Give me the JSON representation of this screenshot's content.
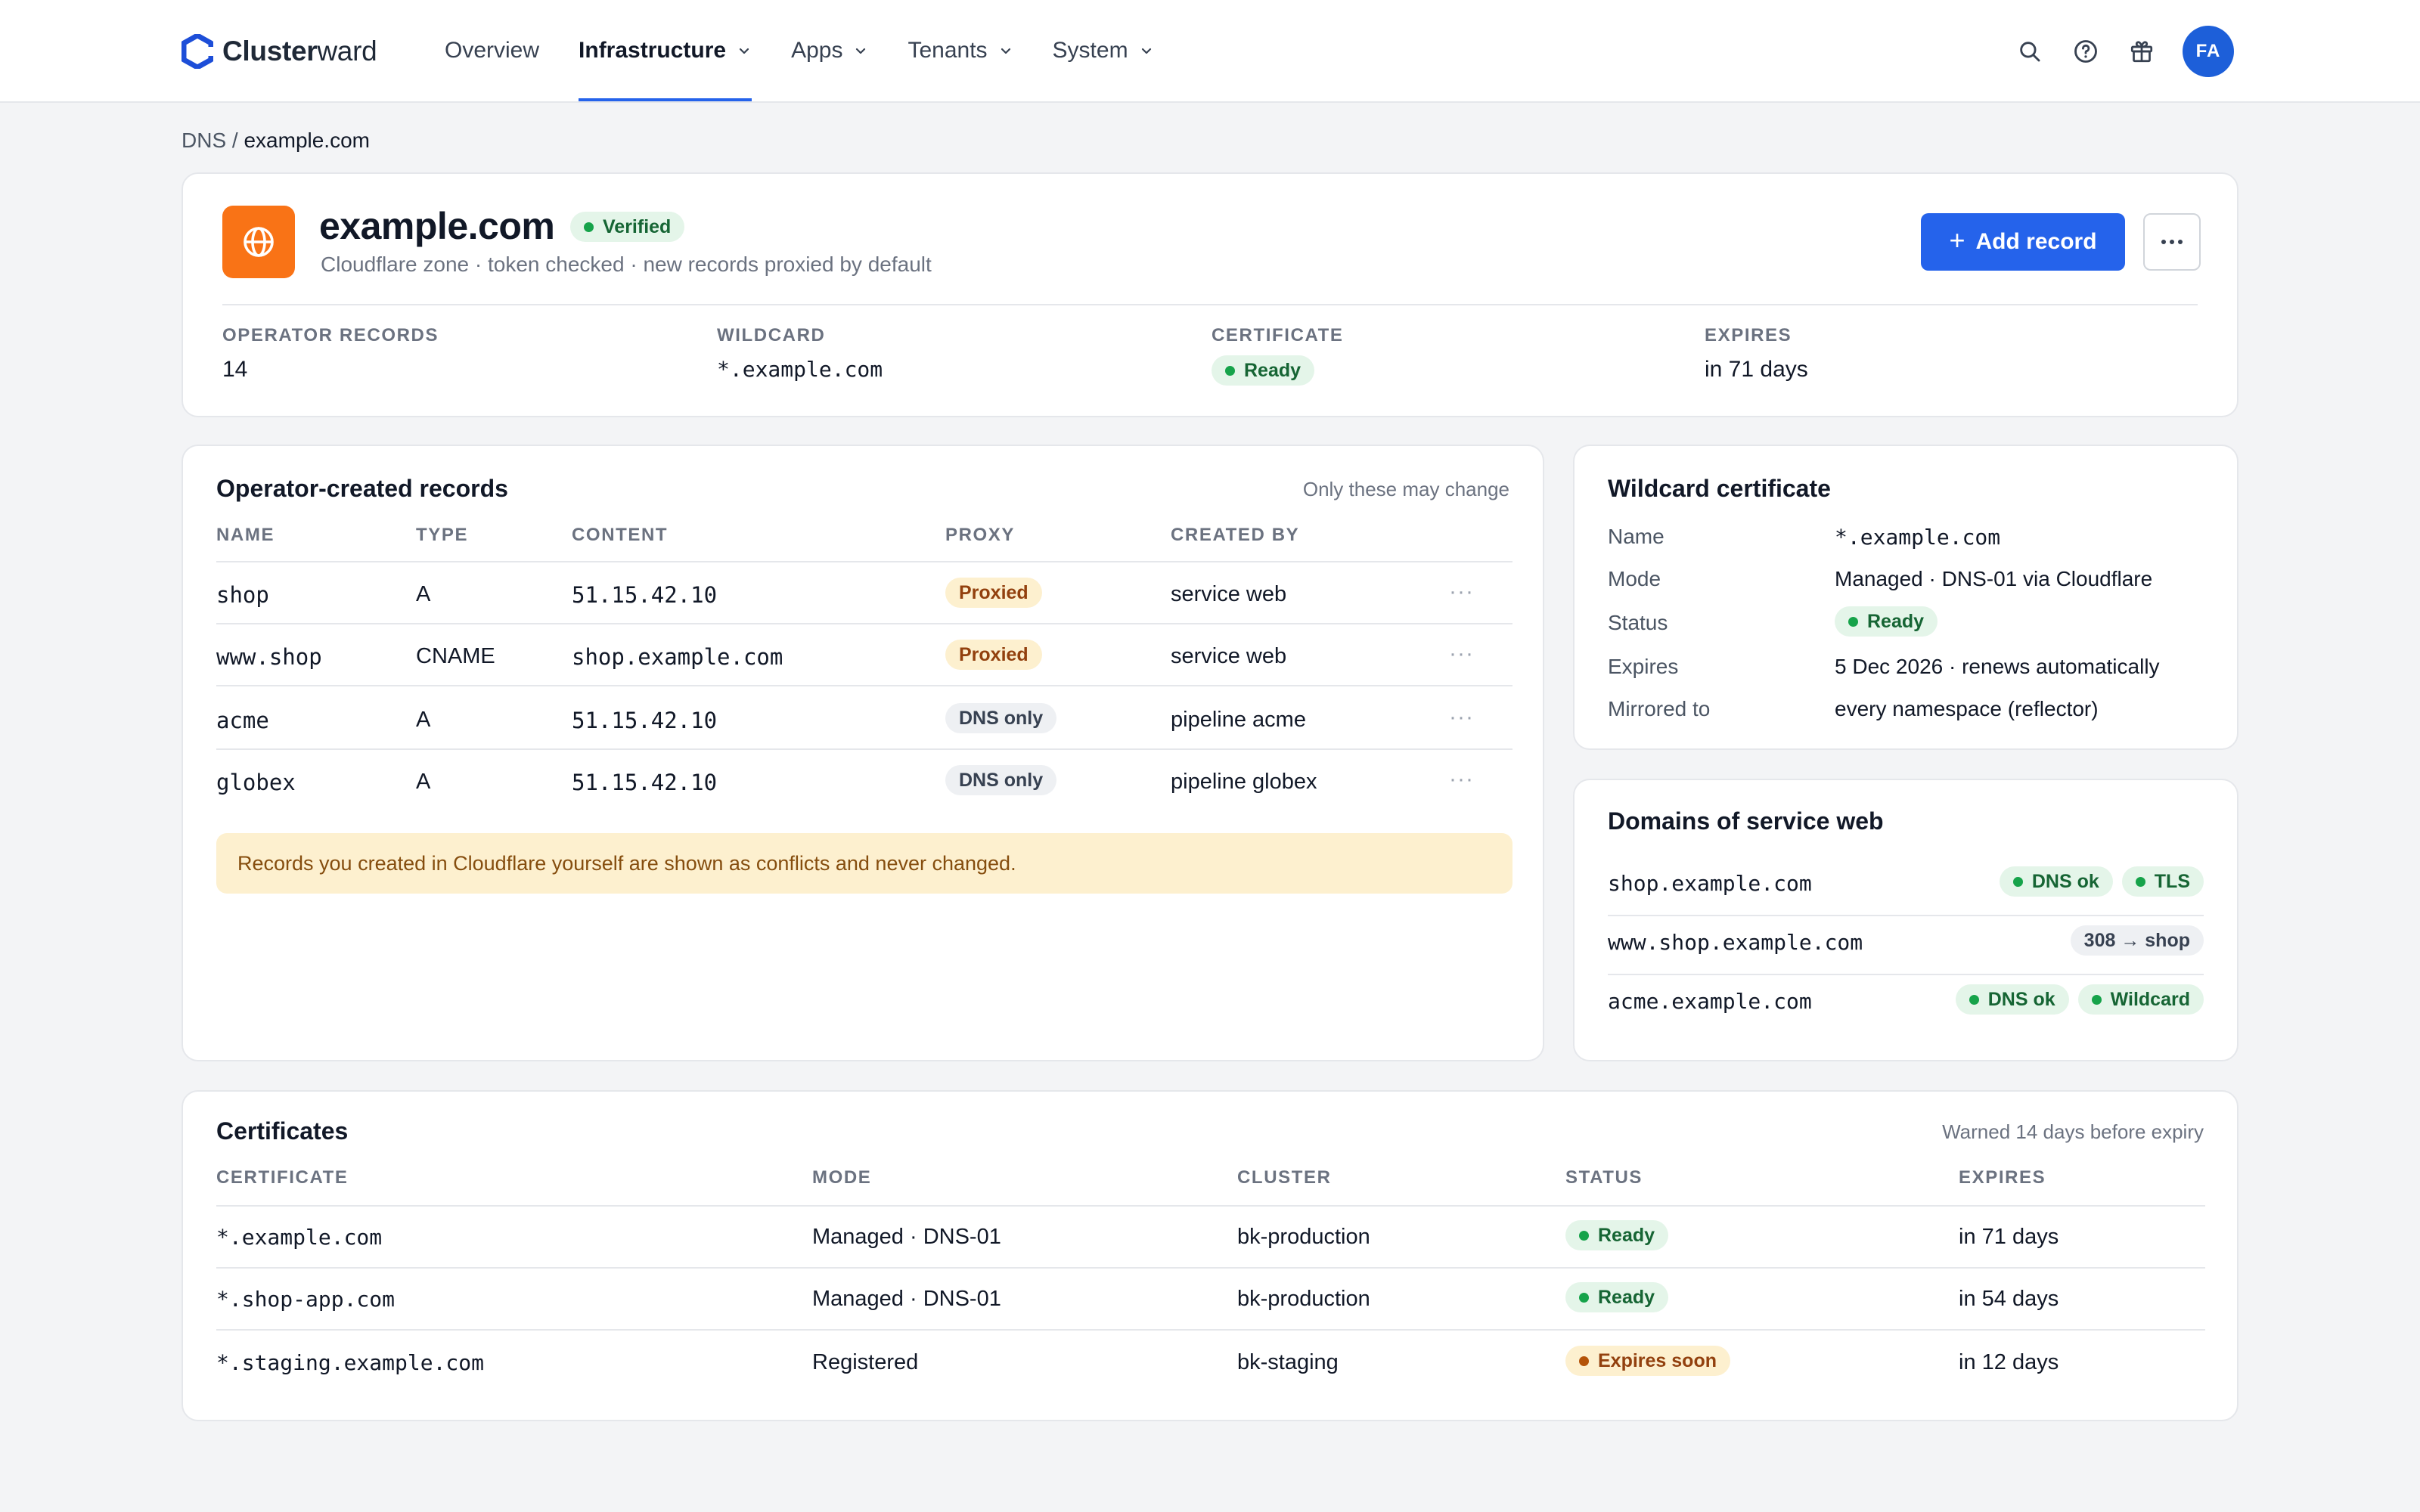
{
  "brand": {
    "name_bold": "Cluster",
    "name_light": "ward"
  },
  "nav": {
    "items": [
      {
        "label": "Overview",
        "dropdown": false,
        "active": false
      },
      {
        "label": "Infrastructure",
        "dropdown": true,
        "active": true
      },
      {
        "label": "Apps",
        "dropdown": true,
        "active": false
      },
      {
        "label": "Tenants",
        "dropdown": true,
        "active": false
      },
      {
        "label": "System",
        "dropdown": true,
        "active": false
      }
    ],
    "icons": [
      "search-icon",
      "help-icon",
      "gift-icon"
    ],
    "avatar_initials": "FA"
  },
  "breadcrumb": {
    "parent": "DNS",
    "separator": "/",
    "current": "example.com"
  },
  "zone": {
    "title": "example.com",
    "verified_label": "Verified",
    "subtitle": "Cloudflare zone · token checked · new records proxied by default",
    "add_record_label": "Add record",
    "stats": [
      {
        "label": "OPERATOR RECORDS",
        "value": "14"
      },
      {
        "label": "WILDCARD",
        "value": "*.example.com"
      },
      {
        "label": "CERTIFICATE",
        "value": "Ready"
      },
      {
        "label": "EXPIRES",
        "value": "in 71 days"
      }
    ]
  },
  "records": {
    "title": "Operator-created records",
    "hint": "Only these may change",
    "columns": [
      "NAME",
      "TYPE",
      "CONTENT",
      "PROXY",
      "CREATED BY"
    ],
    "rows": [
      {
        "name": "shop",
        "type": "A",
        "content": "51.15.42.10",
        "proxy": "Proxied",
        "created_by": "service web"
      },
      {
        "name": "www.shop",
        "type": "CNAME",
        "content": "shop.example.com",
        "proxy": "Proxied",
        "created_by": "service web"
      },
      {
        "name": "acme",
        "type": "A",
        "content": "51.15.42.10",
        "proxy": "DNS only",
        "created_by": "pipeline acme"
      },
      {
        "name": "globex",
        "type": "A",
        "content": "51.15.42.10",
        "proxy": "DNS only",
        "created_by": "pipeline globex"
      }
    ],
    "notice": "Records you created in Cloudflare yourself are shown as conflicts and never changed."
  },
  "wildcard": {
    "title": "Wildcard certificate",
    "rows": [
      {
        "label": "Name",
        "value": "*.example.com"
      },
      {
        "label": "Mode",
        "value": "Managed · DNS-01 via Cloudflare"
      },
      {
        "label": "Status",
        "value": "Ready"
      },
      {
        "label": "Expires",
        "value": "5 Dec 2026 · renews automatically"
      },
      {
        "label": "Mirrored to",
        "value": "every namespace (reflector)"
      }
    ]
  },
  "domains": {
    "title": "Domains of service web",
    "rows": [
      {
        "domain": "shop.example.com",
        "badges": [
          "DNS ok",
          "TLS"
        ]
      },
      {
        "domain": "www.shop.example.com",
        "badges": [
          "308 → shop"
        ]
      },
      {
        "domain": "acme.example.com",
        "badges": [
          "DNS ok",
          "Wildcard"
        ]
      }
    ]
  },
  "certificates": {
    "title": "Certificates",
    "hint": "Warned 14 days before expiry",
    "columns": [
      "CERTIFICATE",
      "MODE",
      "CLUSTER",
      "STATUS",
      "EXPIRES"
    ],
    "rows": [
      {
        "certificate": "*.example.com",
        "mode": "Managed · DNS-01",
        "cluster": "bk-production",
        "status": "Ready",
        "expires": "in 71 days"
      },
      {
        "certificate": "*.shop-app.com",
        "mode": "Managed · DNS-01",
        "cluster": "bk-production",
        "status": "Ready",
        "expires": "in 54 days"
      },
      {
        "certificate": "*.staging.example.com",
        "mode": "Registered",
        "cluster": "bk-staging",
        "status": "Expires soon",
        "expires": "in 12 days"
      }
    ]
  },
  "colors": {
    "accent": "#2563eb",
    "zone_icon": "#f97316",
    "ready_green": "#16a34a",
    "warning_amber": "#b45309"
  }
}
